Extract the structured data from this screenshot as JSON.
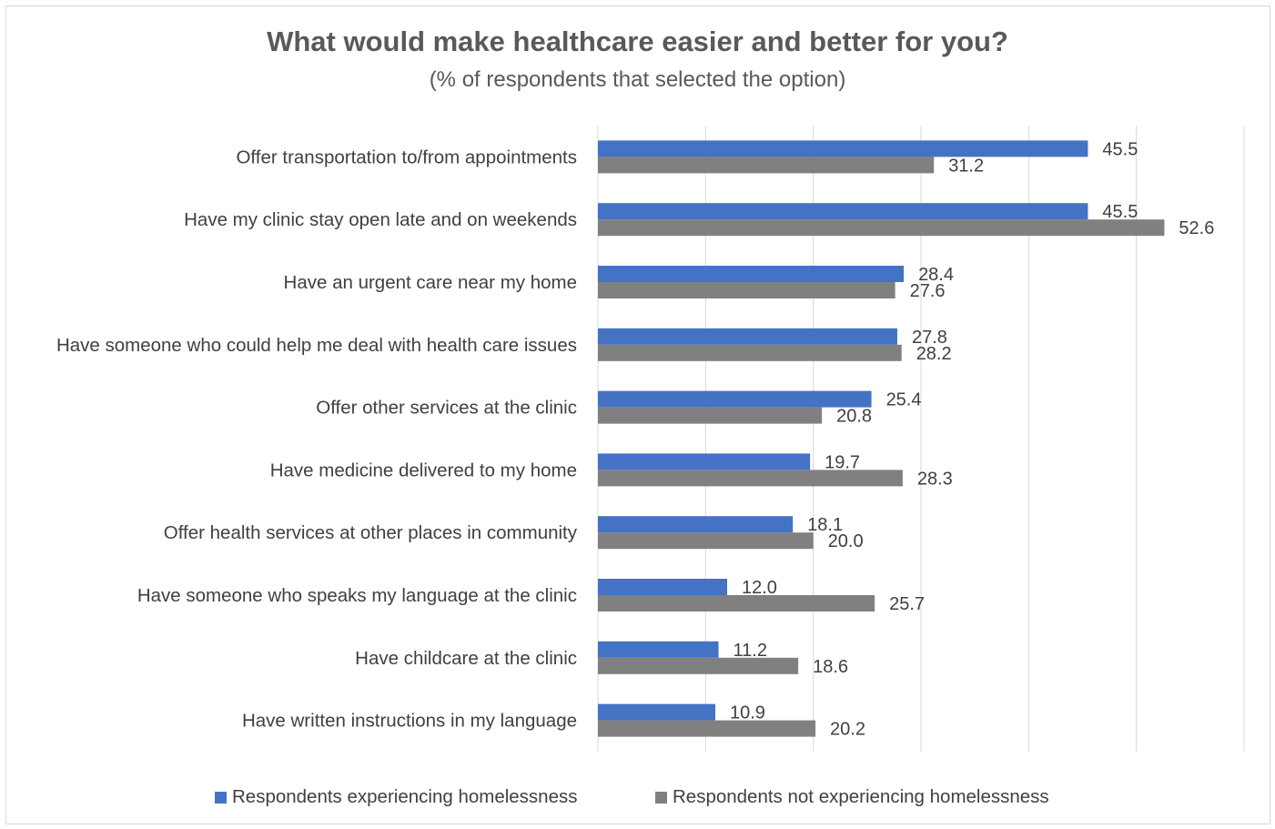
{
  "chart_data": {
    "type": "bar",
    "orientation": "horizontal",
    "title": "What would make healthcare easier and better for you?",
    "subtitle": "(% of respondents that selected the option)",
    "xlim": [
      0,
      60
    ],
    "grid": true,
    "legend_position": "bottom",
    "categories": [
      "Offer transportation to/from appointments",
      "Have my clinic stay open late and on weekends",
      "Have an urgent care near my home",
      "Have someone who could help me deal with health care issues",
      "Offer other services at the clinic",
      "Have medicine delivered to my home",
      "Offer health services at other places in community",
      "Have someone who speaks my language at the clinic",
      "Have childcare at the clinic",
      "Have written instructions in my language"
    ],
    "series": [
      {
        "name": "Respondents experiencing homelessness",
        "color": "#4472c4",
        "values": [
          45.5,
          45.5,
          28.4,
          27.8,
          25.4,
          19.7,
          18.1,
          12.0,
          11.2,
          10.9
        ],
        "labels": [
          "45.5",
          "45.5",
          "28.4",
          "27.8",
          "25.4",
          "19.7",
          "18.1",
          "12.0",
          "11.2",
          "10.9"
        ]
      },
      {
        "name": "Respondents not experiencing homelessness",
        "color": "#808080",
        "values": [
          31.2,
          52.6,
          27.6,
          28.2,
          20.8,
          28.3,
          20.0,
          25.7,
          18.6,
          20.2
        ],
        "labels": [
          "31.2",
          "52.6",
          "27.6",
          "28.2",
          "20.8",
          "28.3",
          "20.0",
          "25.7",
          "18.6",
          "20.2"
        ]
      }
    ]
  }
}
